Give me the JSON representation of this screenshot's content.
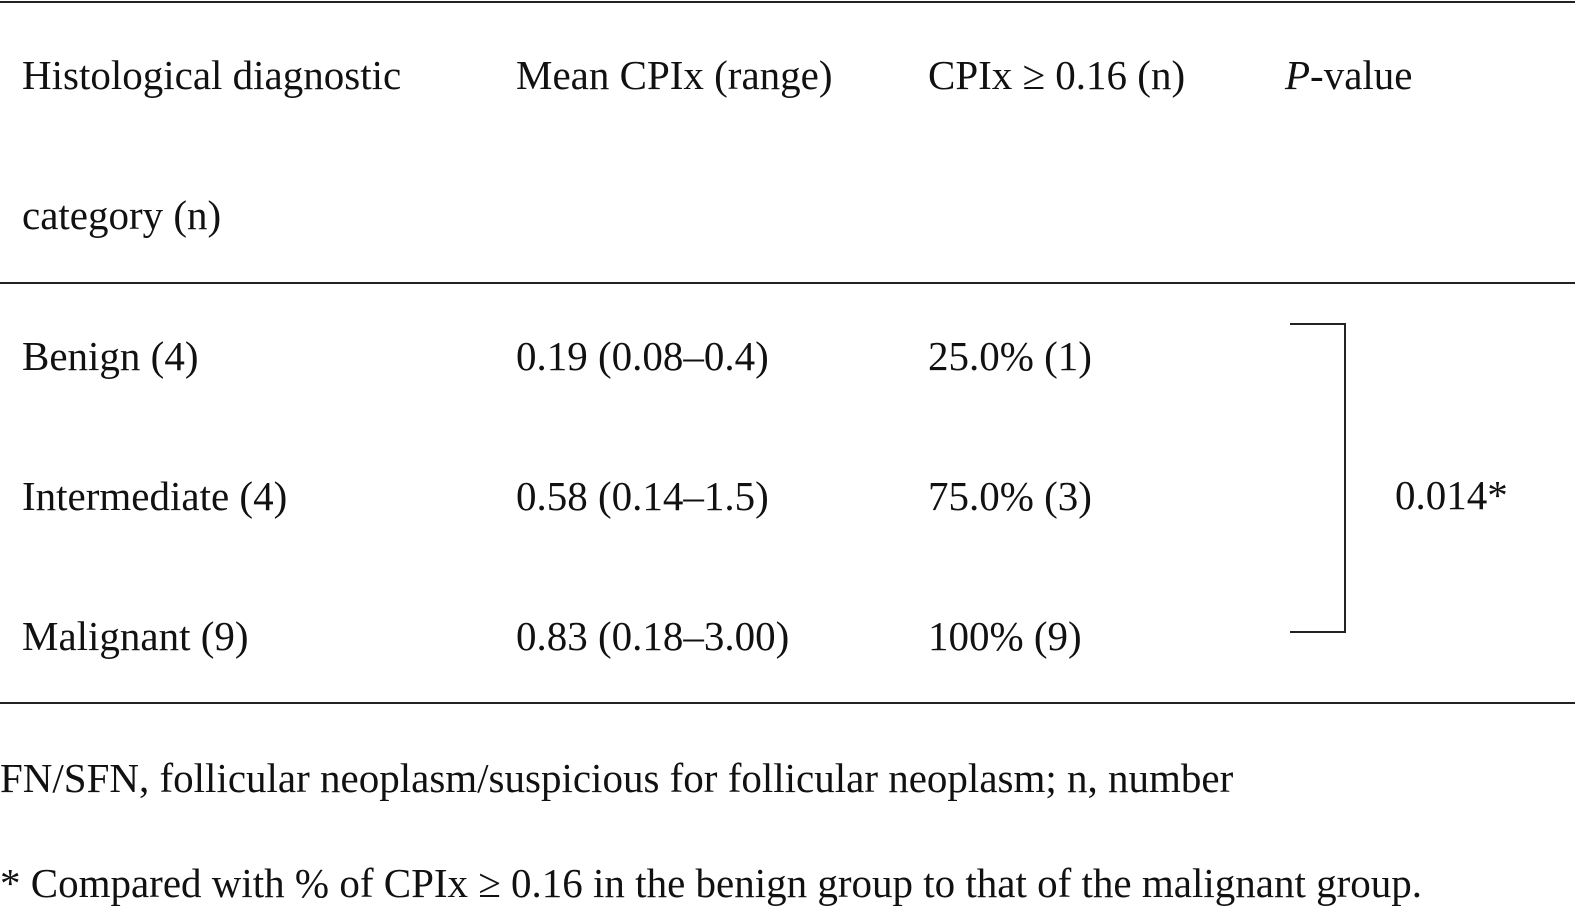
{
  "table": {
    "header": [
      {
        "lines": [
          "Histological diagnostic",
          "category (n)"
        ]
      },
      {
        "lines": [
          "Mean CPIx (range)"
        ]
      },
      {
        "lines": [
          "CPIx ≥ 0.16 (n)"
        ]
      },
      {
        "italic": "P",
        "text": "-value"
      }
    ],
    "rows": [
      [
        "Benign (4)",
        "0.19 (0.08–0.4)",
        "25.0% (1)"
      ],
      [
        "Intermediate (4)",
        "0.58 (0.14–1.5)",
        "75.0% (3)"
      ],
      [
        "Malignant (9)",
        "0.83 (0.18–3.00)",
        "100% (9)"
      ]
    ],
    "p_value": "0.014*"
  },
  "footnotes": [
    "FN/SFN, follicular neoplasm/suspicious for follicular neoplasm; n, number",
    "* Compared with % of CPIx ≥ 0.16 in the benign group to that of the malignant group."
  ]
}
